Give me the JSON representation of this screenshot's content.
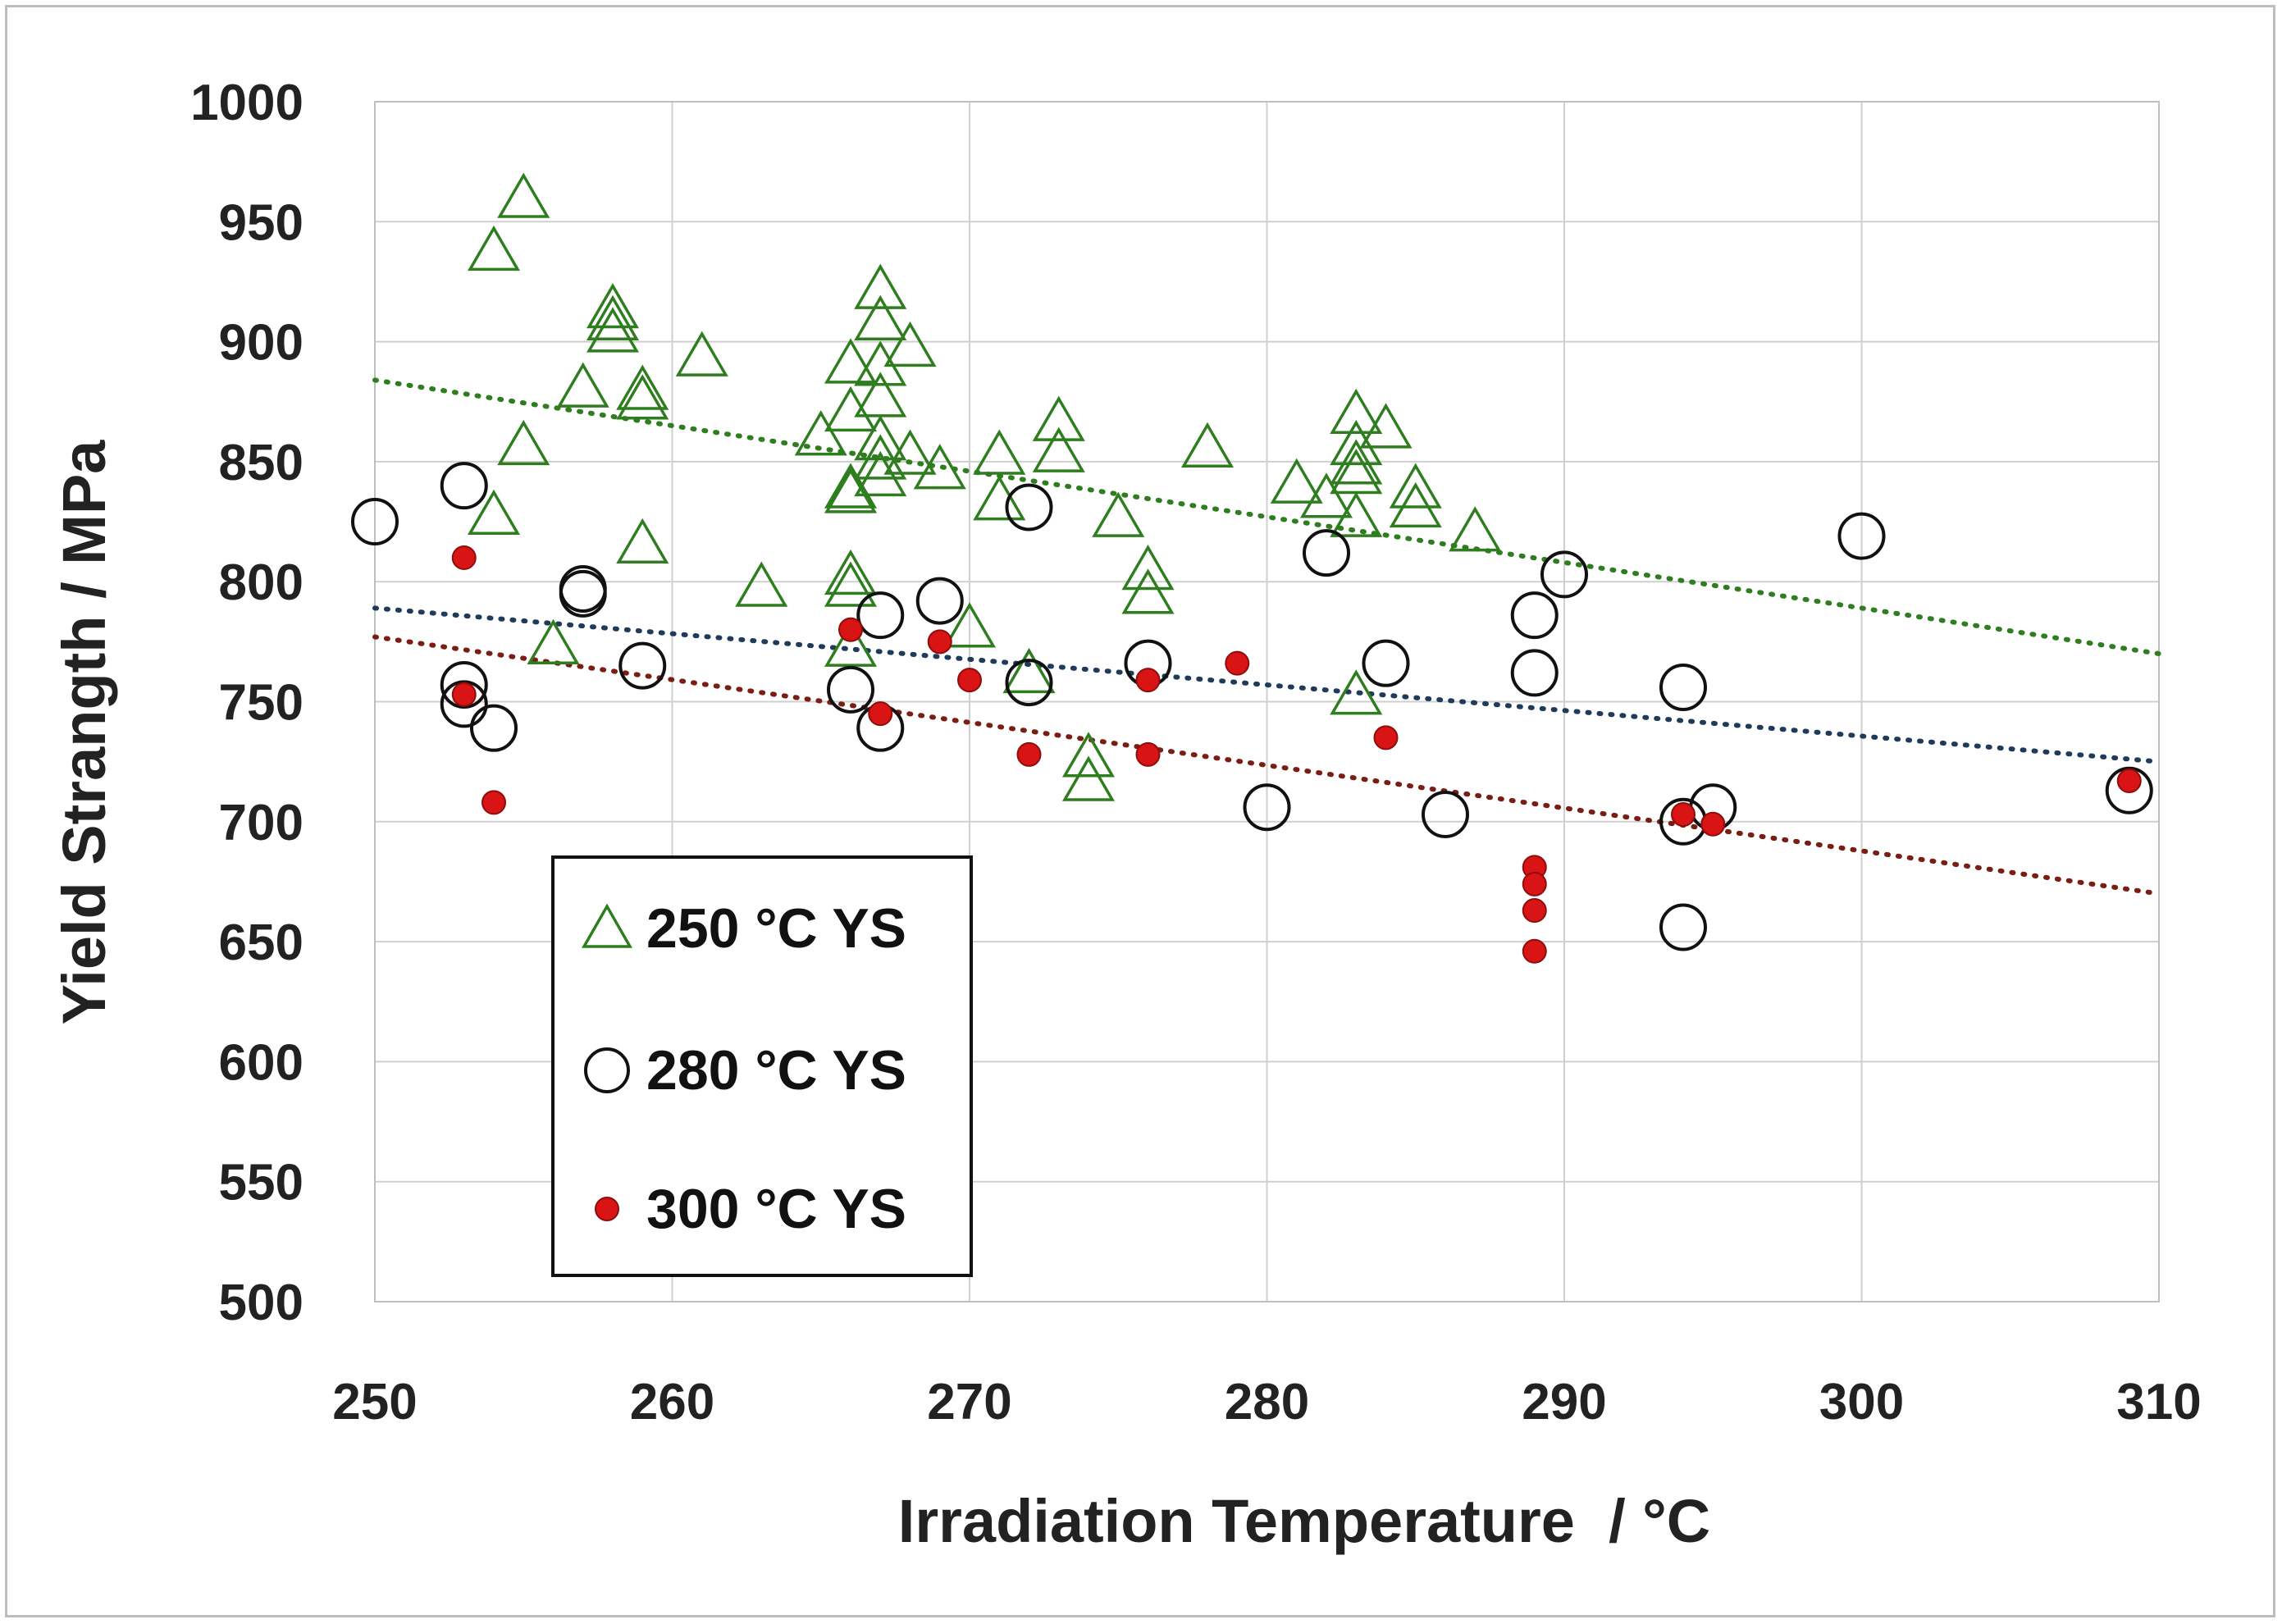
{
  "chart_data": {
    "type": "scatter",
    "xlabel": "Irradiation Temperature  / °C",
    "ylabel": "Yield Strangth / MPa",
    "xlim": [
      250,
      310
    ],
    "ylim": [
      500,
      1000
    ],
    "x_ticks": [
      250,
      260,
      270,
      280,
      290,
      300,
      310
    ],
    "y_ticks": [
      500,
      550,
      600,
      650,
      700,
      750,
      800,
      850,
      900,
      950,
      1000
    ],
    "grid": true,
    "legend_position": "lower-left",
    "series": [
      {
        "name": "250 °C YS",
        "marker": "triangle-open",
        "color": "#2e7d1f",
        "points": [
          [
            254,
            937
          ],
          [
            255,
            959
          ],
          [
            254,
            827
          ],
          [
            255,
            856
          ],
          [
            256,
            773
          ],
          [
            257,
            880
          ],
          [
            258,
            913
          ],
          [
            258,
            908
          ],
          [
            258,
            903
          ],
          [
            259,
            879
          ],
          [
            259,
            875
          ],
          [
            259,
            815
          ],
          [
            261,
            893
          ],
          [
            263,
            797
          ],
          [
            265,
            860
          ],
          [
            266,
            890
          ],
          [
            266,
            870
          ],
          [
            266,
            838
          ],
          [
            266,
            836
          ],
          [
            266,
            802
          ],
          [
            266,
            797
          ],
          [
            266,
            772
          ],
          [
            267,
            889
          ],
          [
            267,
            876
          ],
          [
            267,
            858
          ],
          [
            267,
            850
          ],
          [
            267,
            843
          ],
          [
            267,
            921
          ],
          [
            267,
            908
          ],
          [
            268,
            897
          ],
          [
            268,
            852
          ],
          [
            269,
            846
          ],
          [
            270,
            780
          ],
          [
            271,
            852
          ],
          [
            271,
            833
          ],
          [
            272,
            761
          ],
          [
            273,
            866
          ],
          [
            273,
            853
          ],
          [
            275,
            826
          ],
          [
            274,
            726
          ],
          [
            274,
            716
          ],
          [
            276,
            804
          ],
          [
            276,
            794
          ],
          [
            278,
            855
          ],
          [
            281,
            840
          ],
          [
            282,
            834
          ],
          [
            283,
            869
          ],
          [
            283,
            856
          ],
          [
            283,
            848
          ],
          [
            283,
            844
          ],
          [
            283,
            826
          ],
          [
            283,
            752
          ],
          [
            284,
            863
          ],
          [
            285,
            838
          ],
          [
            285,
            830
          ],
          [
            287,
            820
          ]
        ]
      },
      {
        "name": "280 °C YS",
        "marker": "circle-open",
        "color": "#111111",
        "points": [
          [
            250,
            825
          ],
          [
            253,
            840
          ],
          [
            253,
            757
          ],
          [
            253,
            749
          ],
          [
            254,
            739
          ],
          [
            257,
            797
          ],
          [
            257,
            795
          ],
          [
            259,
            765
          ],
          [
            266,
            755
          ],
          [
            267,
            786
          ],
          [
            267,
            739
          ],
          [
            269,
            792
          ],
          [
            272,
            831
          ],
          [
            272,
            758
          ],
          [
            276,
            766
          ],
          [
            280,
            706
          ],
          [
            282,
            812
          ],
          [
            284,
            766
          ],
          [
            286,
            703
          ],
          [
            289,
            786
          ],
          [
            289,
            762
          ],
          [
            290,
            803
          ],
          [
            294,
            756
          ],
          [
            294,
            700
          ],
          [
            294,
            656
          ],
          [
            295,
            706
          ],
          [
            300,
            819
          ],
          [
            309,
            713
          ]
        ]
      },
      {
        "name": "300 °C YS",
        "marker": "circle-filled",
        "color": "#d81414",
        "points": [
          [
            253,
            810
          ],
          [
            253,
            753
          ],
          [
            254,
            708
          ],
          [
            266,
            780
          ],
          [
            267,
            745
          ],
          [
            269,
            775
          ],
          [
            270,
            759
          ],
          [
            272,
            728
          ],
          [
            276,
            759
          ],
          [
            276,
            728
          ],
          [
            279,
            766
          ],
          [
            284,
            735
          ],
          [
            289,
            681
          ],
          [
            289,
            674
          ],
          [
            289,
            663
          ],
          [
            289,
            646
          ],
          [
            294,
            703
          ],
          [
            295,
            699
          ],
          [
            309,
            717
          ]
        ]
      }
    ],
    "trendlines": [
      {
        "series": "250 °C YS",
        "color": "#2e7d1f",
        "x": [
          250,
          310
        ],
        "y": [
          884,
          770
        ]
      },
      {
        "series": "280 °C YS",
        "color": "#1f3a5a",
        "x": [
          250,
          310
        ],
        "y": [
          789,
          725
        ]
      },
      {
        "series": "300 °C YS",
        "color": "#7a1e14",
        "x": [
          250,
          310
        ],
        "y": [
          777,
          670
        ]
      }
    ]
  }
}
